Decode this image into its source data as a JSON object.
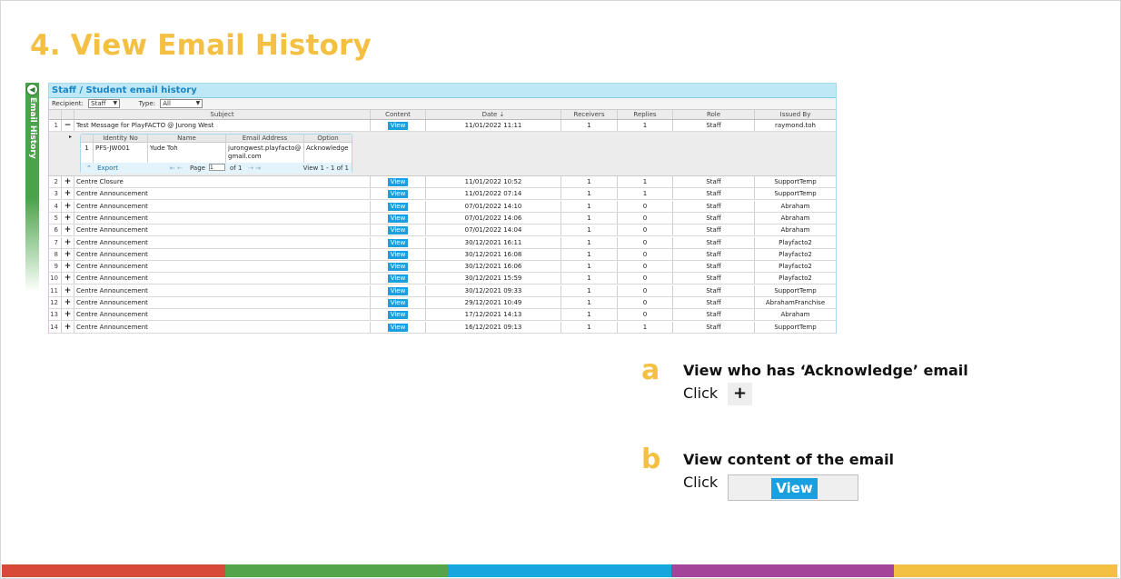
{
  "slide": {
    "title": "4. View Email History",
    "title_color": "#f4c043"
  },
  "side_tab": {
    "label": "Email History",
    "arrow": "◀"
  },
  "panel": {
    "title": "Staff / Student email history",
    "recipient_label": "Recipient:",
    "recipient_value": "Staff",
    "type_label": "Type:",
    "type_value": "All"
  },
  "columns": [
    "Subject",
    "Content",
    "Date ⇣",
    "Receivers",
    "Replies",
    "Role",
    "Issued By"
  ],
  "view_label": "View",
  "rows": [
    {
      "n": "1",
      "exp": "−",
      "subject": "Test Message for PlayFACTO @ Jurong West",
      "date": "11/01/2022 11:11",
      "receivers": "1",
      "replies": "1",
      "role": "Staff",
      "issued_by": "raymond.toh"
    },
    {
      "n": "2",
      "exp": "+",
      "subject": "Centre Closure",
      "date": "11/01/2022 10:52",
      "receivers": "1",
      "replies": "1",
      "role": "Staff",
      "issued_by": "SupportTemp"
    },
    {
      "n": "3",
      "exp": "+",
      "subject": "Centre Announcement",
      "date": "11/01/2022 07:14",
      "receivers": "1",
      "replies": "1",
      "role": "Staff",
      "issued_by": "SupportTemp"
    },
    {
      "n": "4",
      "exp": "+",
      "subject": "Centre Announcement",
      "date": "07/01/2022 14:10",
      "receivers": "1",
      "replies": "0",
      "role": "Staff",
      "issued_by": "Abraham"
    },
    {
      "n": "5",
      "exp": "+",
      "subject": "Centre Announcement",
      "date": "07/01/2022 14:06",
      "receivers": "1",
      "replies": "0",
      "role": "Staff",
      "issued_by": "Abraham"
    },
    {
      "n": "6",
      "exp": "+",
      "subject": "Centre Announcement",
      "date": "07/01/2022 14:04",
      "receivers": "1",
      "replies": "0",
      "role": "Staff",
      "issued_by": "Abraham"
    },
    {
      "n": "7",
      "exp": "+",
      "subject": "Centre Announcement",
      "date": "30/12/2021 16:11",
      "receivers": "1",
      "replies": "0",
      "role": "Staff",
      "issued_by": "Playfacto2"
    },
    {
      "n": "8",
      "exp": "+",
      "subject": "Centre Announcement",
      "date": "30/12/2021 16:08",
      "receivers": "1",
      "replies": "0",
      "role": "Staff",
      "issued_by": "Playfacto2"
    },
    {
      "n": "9",
      "exp": "+",
      "subject": "Centre Announcement",
      "date": "30/12/2021 16:06",
      "receivers": "1",
      "replies": "0",
      "role": "Staff",
      "issued_by": "Playfacto2"
    },
    {
      "n": "10",
      "exp": "+",
      "subject": "Centre Announcement",
      "date": "30/12/2021 15:59",
      "receivers": "1",
      "replies": "0",
      "role": "Staff",
      "issued_by": "Playfacto2"
    },
    {
      "n": "11",
      "exp": "+",
      "subject": "Centre Announcement",
      "date": "30/12/2021 09:33",
      "receivers": "1",
      "replies": "0",
      "role": "Staff",
      "issued_by": "SupportTemp"
    },
    {
      "n": "12",
      "exp": "+",
      "subject": "Centre Announcement",
      "date": "29/12/2021 10:49",
      "receivers": "1",
      "replies": "0",
      "role": "Staff",
      "issued_by": "AbrahamFranchise"
    },
    {
      "n": "13",
      "exp": "+",
      "subject": "Centre Announcement",
      "date": "17/12/2021 14:13",
      "receivers": "1",
      "replies": "0",
      "role": "Staff",
      "issued_by": "Abraham"
    },
    {
      "n": "14",
      "exp": "+",
      "subject": "Centre Announcement",
      "date": "16/12/2021 09:13",
      "receivers": "1",
      "replies": "1",
      "role": "Staff",
      "issued_by": "SupportTemp"
    }
  ],
  "subgrid": {
    "columns": [
      "Identity No",
      "Name",
      "Email Address",
      "Option"
    ],
    "row": {
      "n": "1",
      "identity": "PFS-JW001",
      "name": "Yude Toh",
      "email": "jurongwest.playfacto@gmail.com",
      "option": "Acknowledge"
    },
    "export_label": "Export",
    "page_label": "Page",
    "page_value": "1",
    "page_of": "of 1",
    "view_info": "View 1 - 1 of 1"
  },
  "annotations": {
    "a": {
      "letter": "a",
      "title": "View who has ‘Acknowledge’ email",
      "click": "Click",
      "symbol": "+"
    },
    "b": {
      "letter": "b",
      "title": "View content of the email",
      "click": "Click",
      "button": "View"
    }
  },
  "color_bar": [
    "#d84a38",
    "#54a449",
    "#17a7df",
    "#a3449a",
    "#f4c043"
  ]
}
